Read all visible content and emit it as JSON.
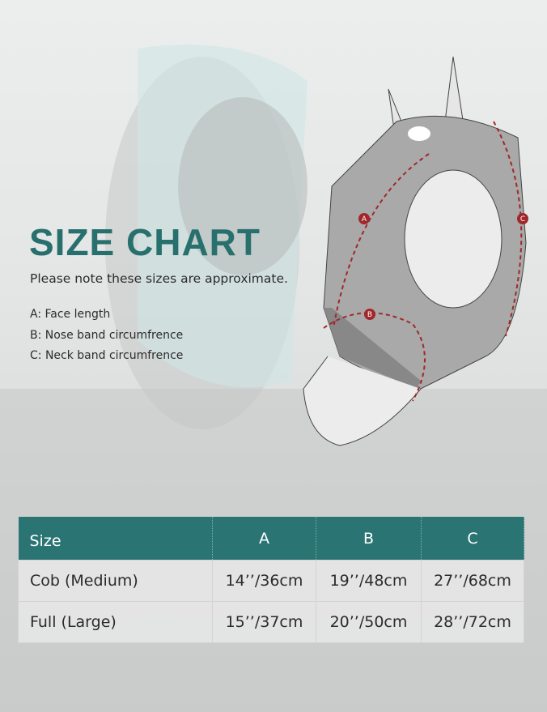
{
  "title": "SIZE CHART",
  "note": "Please note these sizes are approximate.",
  "legend": [
    "A: Face length",
    "B: Nose band circumfrence",
    "C: Neck band circumfrence"
  ],
  "diagram_labels": [
    "A",
    "B",
    "C"
  ],
  "colors": {
    "accent": "#27706d",
    "arrow": "#a0282a"
  },
  "table": {
    "headers": [
      "Size",
      "A",
      "B",
      "C"
    ],
    "rows": [
      [
        "Cob (Medium)",
        "14’’/36cm",
        "19’’/48cm",
        "27’’/68cm"
      ],
      [
        "Full (Large)",
        "15’’/37cm",
        "20’’/50cm",
        "28’’/72cm"
      ]
    ]
  }
}
